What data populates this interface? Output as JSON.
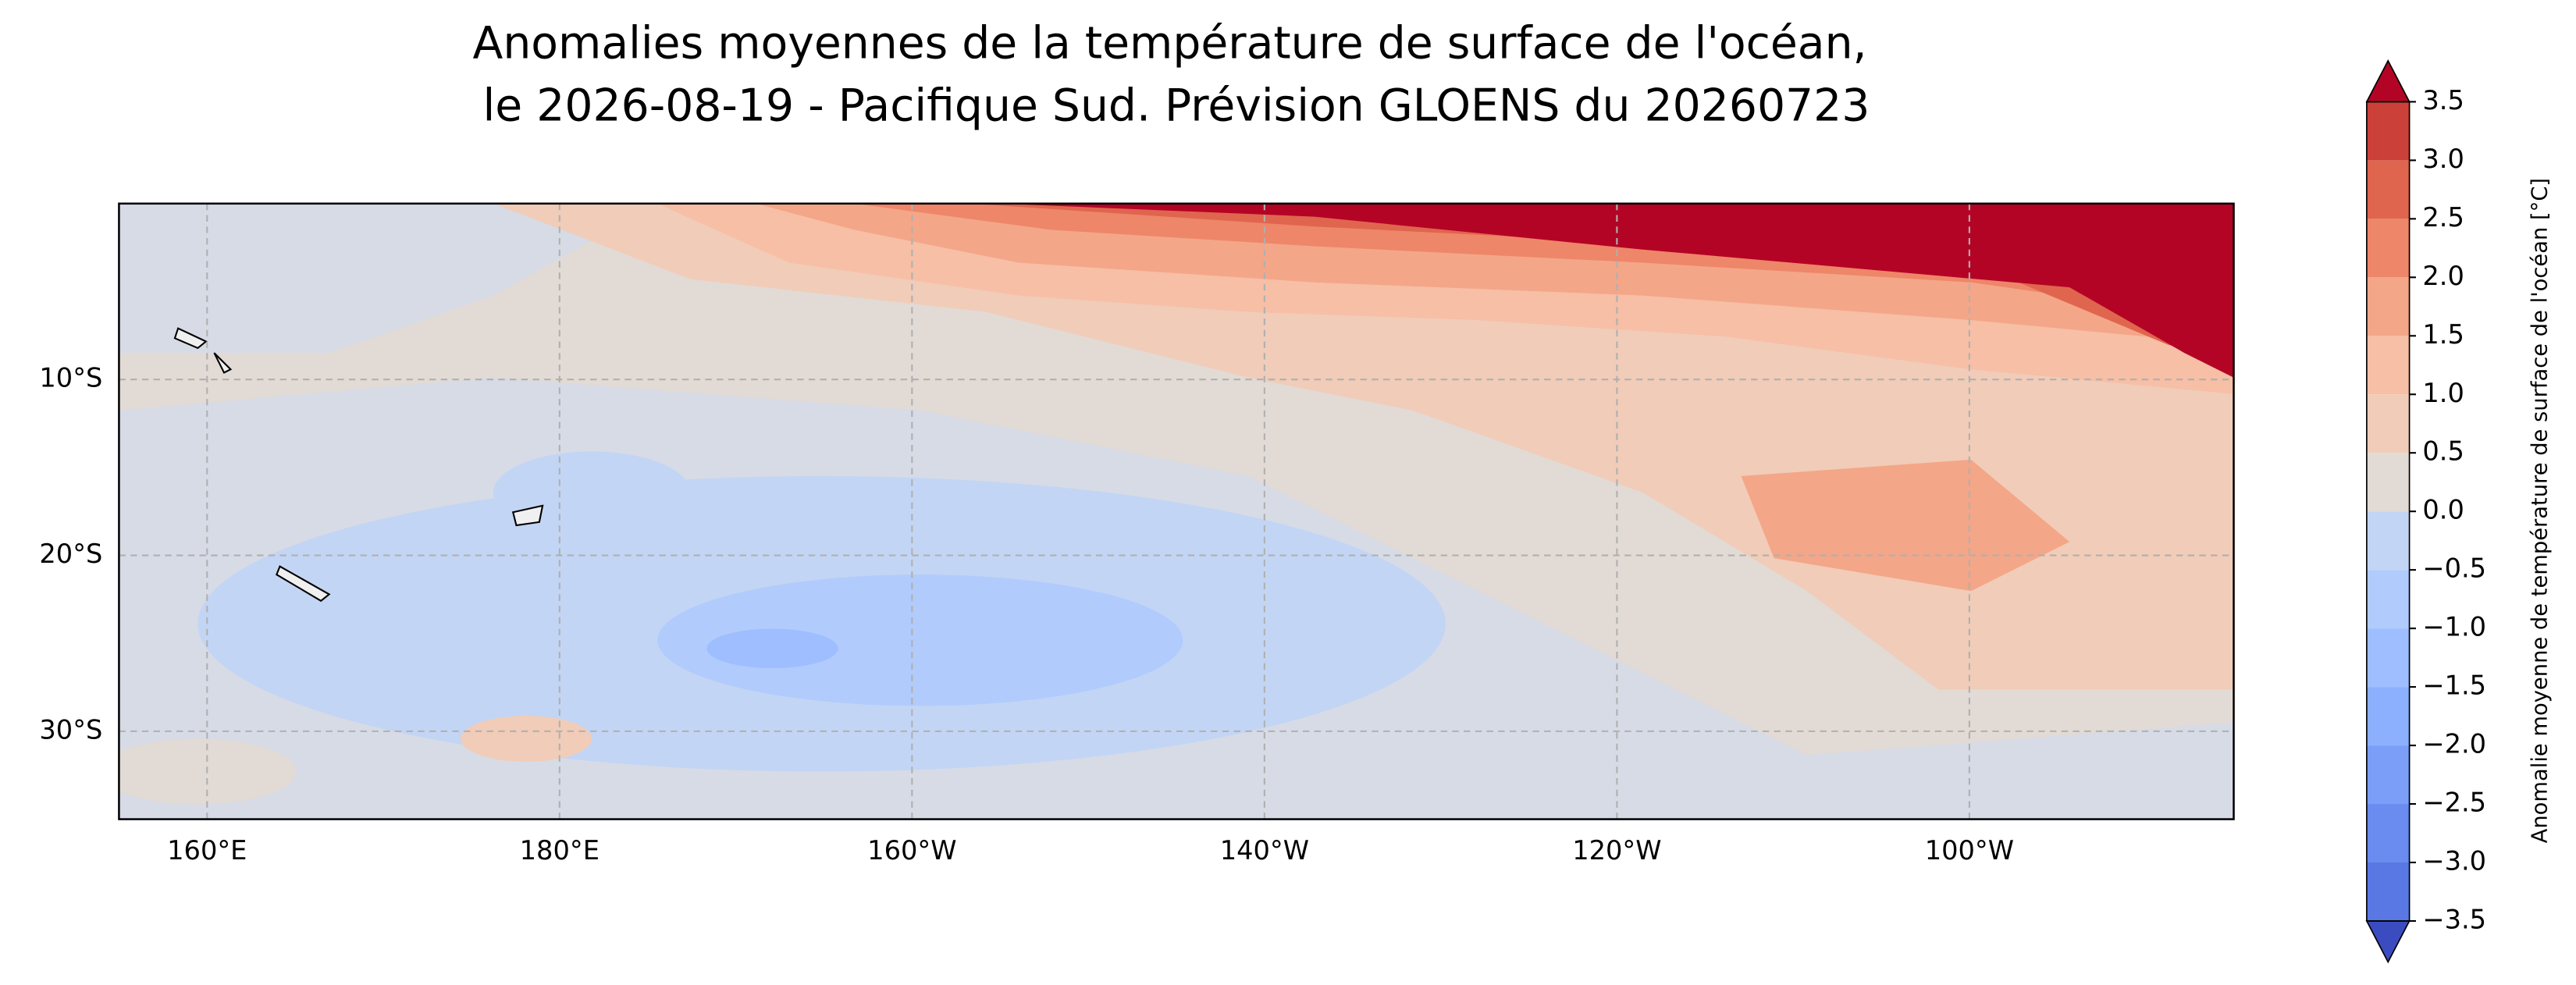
{
  "title": [
    "Anomalies moyennes de la température de surface de l'océan,",
    "le 2026-08-19 - Pacifique Sud. Prévision GLOENS du 20260723"
  ],
  "map": {
    "type": "contour-map",
    "xlim": [
      155,
      275
    ],
    "ylim": [
      -35,
      0
    ],
    "grid": true,
    "xticks": [
      {
        "value": 160,
        "label": "160°E"
      },
      {
        "value": 180,
        "label": "180°E"
      },
      {
        "value": 200,
        "label": "160°W"
      },
      {
        "value": 220,
        "label": "140°W"
      },
      {
        "value": 240,
        "label": "120°W"
      },
      {
        "value": 260,
        "label": "100°W"
      }
    ],
    "yticks": [
      {
        "value": -10,
        "label": "10°S"
      },
      {
        "value": -20,
        "label": "20°S"
      },
      {
        "value": -30,
        "label": "30°S"
      }
    ]
  },
  "colorbar": {
    "label": "Anomalie moyenne de température de surface de l'océan [°C]",
    "lim": [
      -3.5,
      3.5
    ],
    "ticks": [
      {
        "value": -3.5,
        "label": "−3.5"
      },
      {
        "value": -3,
        "label": "−3.0"
      },
      {
        "value": -2.5,
        "label": "−2.5"
      },
      {
        "value": -2,
        "label": "−2.0"
      },
      {
        "value": -1.5,
        "label": "−1.5"
      },
      {
        "value": -1,
        "label": "−1.0"
      },
      {
        "value": -0.5,
        "label": "−0.5"
      },
      {
        "value": 0,
        "label": "0.0"
      },
      0.5,
      {
        "value": 1,
        "label": "1.0"
      },
      1.5,
      {
        "value": 2,
        "label": "2.0"
      },
      2.5,
      {
        "value": 3,
        "label": "3.0"
      },
      3.5
    ],
    "colors": [
      "#5a78e4",
      "#6a8bef",
      "#7b9ff9",
      "#8db0fe",
      "#9ebeff",
      "#b1cbfc",
      "#c3d5f4",
      "#e2dad5",
      "#f1ccb8",
      "#f6bfa6",
      "#f4a688",
      "#ee8669",
      "#e0654f",
      "#cc403a"
    ],
    "extend_colors": [
      "#3b4cc0",
      "#b40426"
    ]
  }
}
